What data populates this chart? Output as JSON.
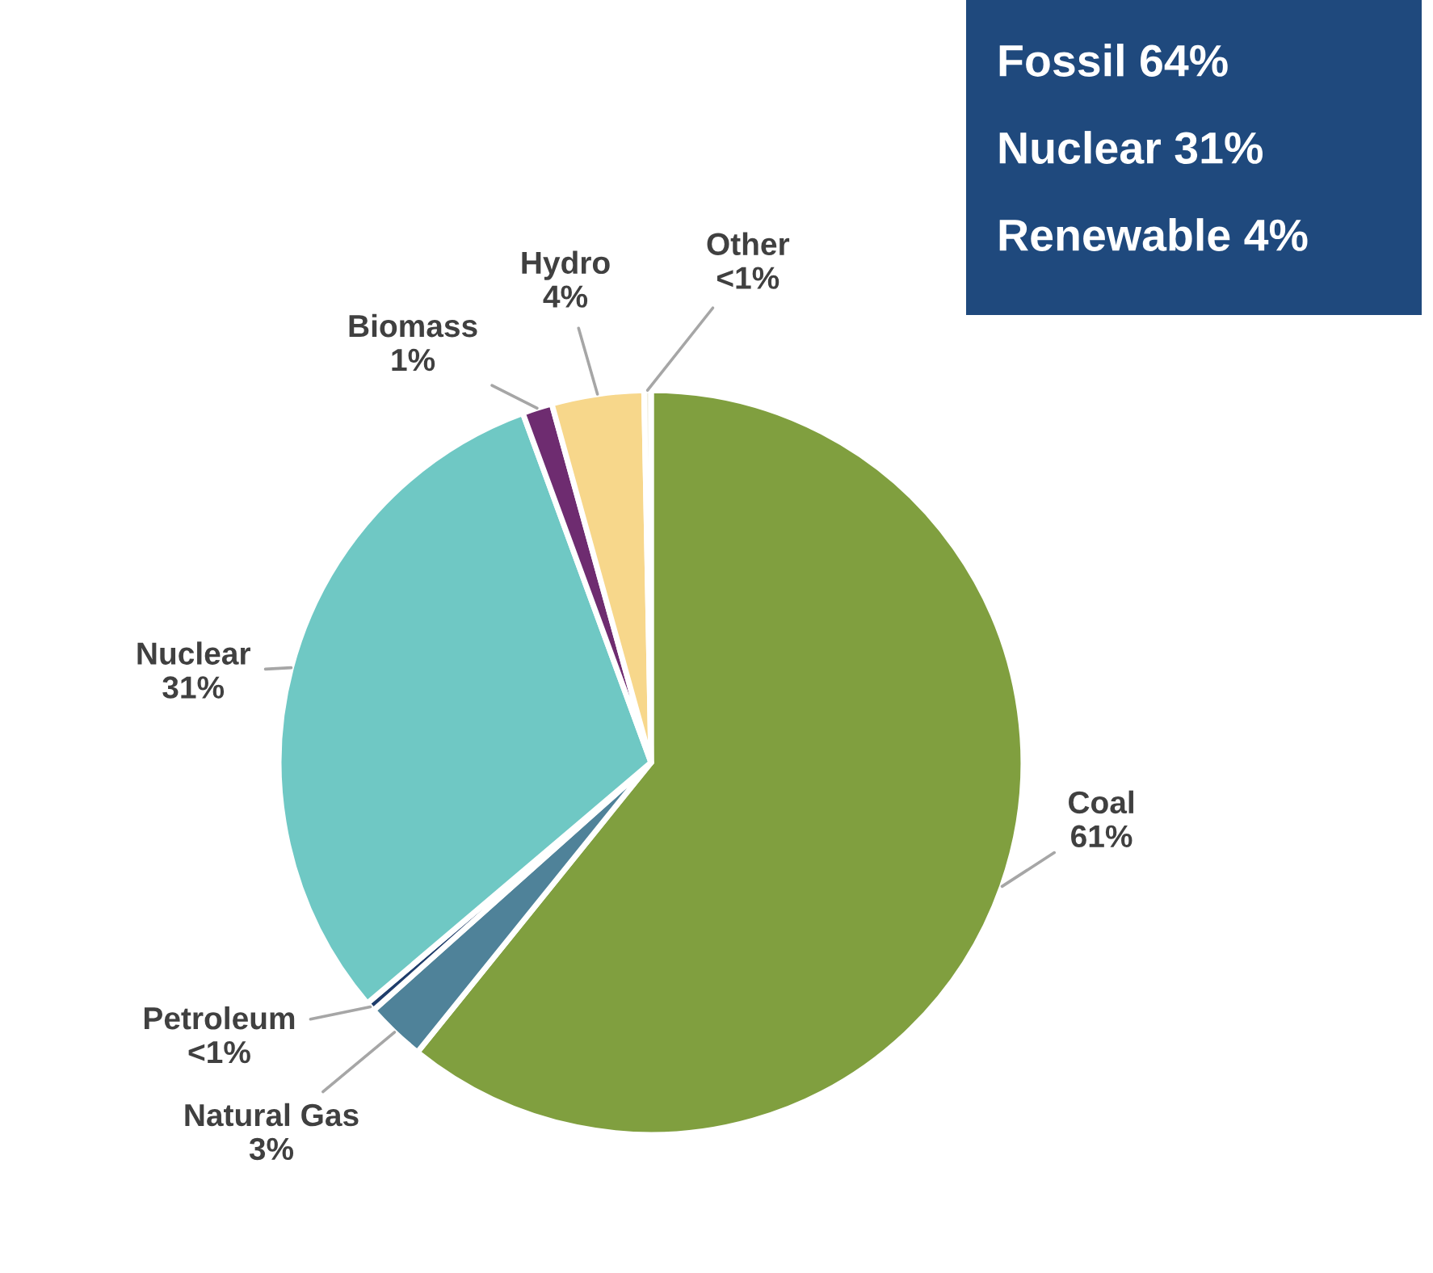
{
  "chart_data": {
    "type": "pie",
    "categories": [
      "Coal",
      "Natural Gas",
      "Petroleum",
      "Nuclear",
      "Biomass",
      "Hydro",
      "Other"
    ],
    "values": [
      60.8,
      2.6,
      0.4,
      30.6,
      1.3,
      4.0,
      0.3
    ],
    "value_labels": [
      "61%",
      "3%",
      "<1%",
      "31%",
      "1%",
      "4%",
      "<1%"
    ],
    "colors": [
      "#809f3f",
      "#4f8299",
      "#1f3d6b",
      "#6fc8c4",
      "#6e2c70",
      "#f7d78b",
      "#f2efe0"
    ],
    "annotations": [
      "Fossil 64%",
      "Nuclear 31%",
      "Renewable 4%"
    ]
  }
}
